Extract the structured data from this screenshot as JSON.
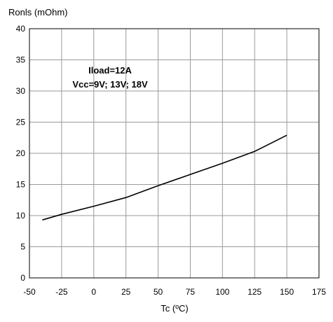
{
  "chart_data": {
    "type": "line",
    "title": "",
    "xlabel": "Tc (ºC)",
    "ylabel": "Ronls (mOhm)",
    "xlim": [
      -50,
      175
    ],
    "ylim": [
      0,
      40
    ],
    "x_ticks": [
      -50,
      -25,
      0,
      25,
      50,
      75,
      100,
      125,
      150,
      175
    ],
    "y_ticks": [
      0,
      5,
      10,
      15,
      20,
      25,
      30,
      35,
      40
    ],
    "grid": true,
    "annotations": [
      "Iload=12A",
      "Vcc=9V; 13V; 18V"
    ],
    "series": [
      {
        "color": "#000000",
        "x": [
          -40,
          -25,
          0,
          25,
          50,
          75,
          100,
          125,
          150
        ],
        "y": [
          9.3,
          10.2,
          11.5,
          12.9,
          14.8,
          16.6,
          18.4,
          20.3,
          22.9
        ]
      }
    ]
  }
}
